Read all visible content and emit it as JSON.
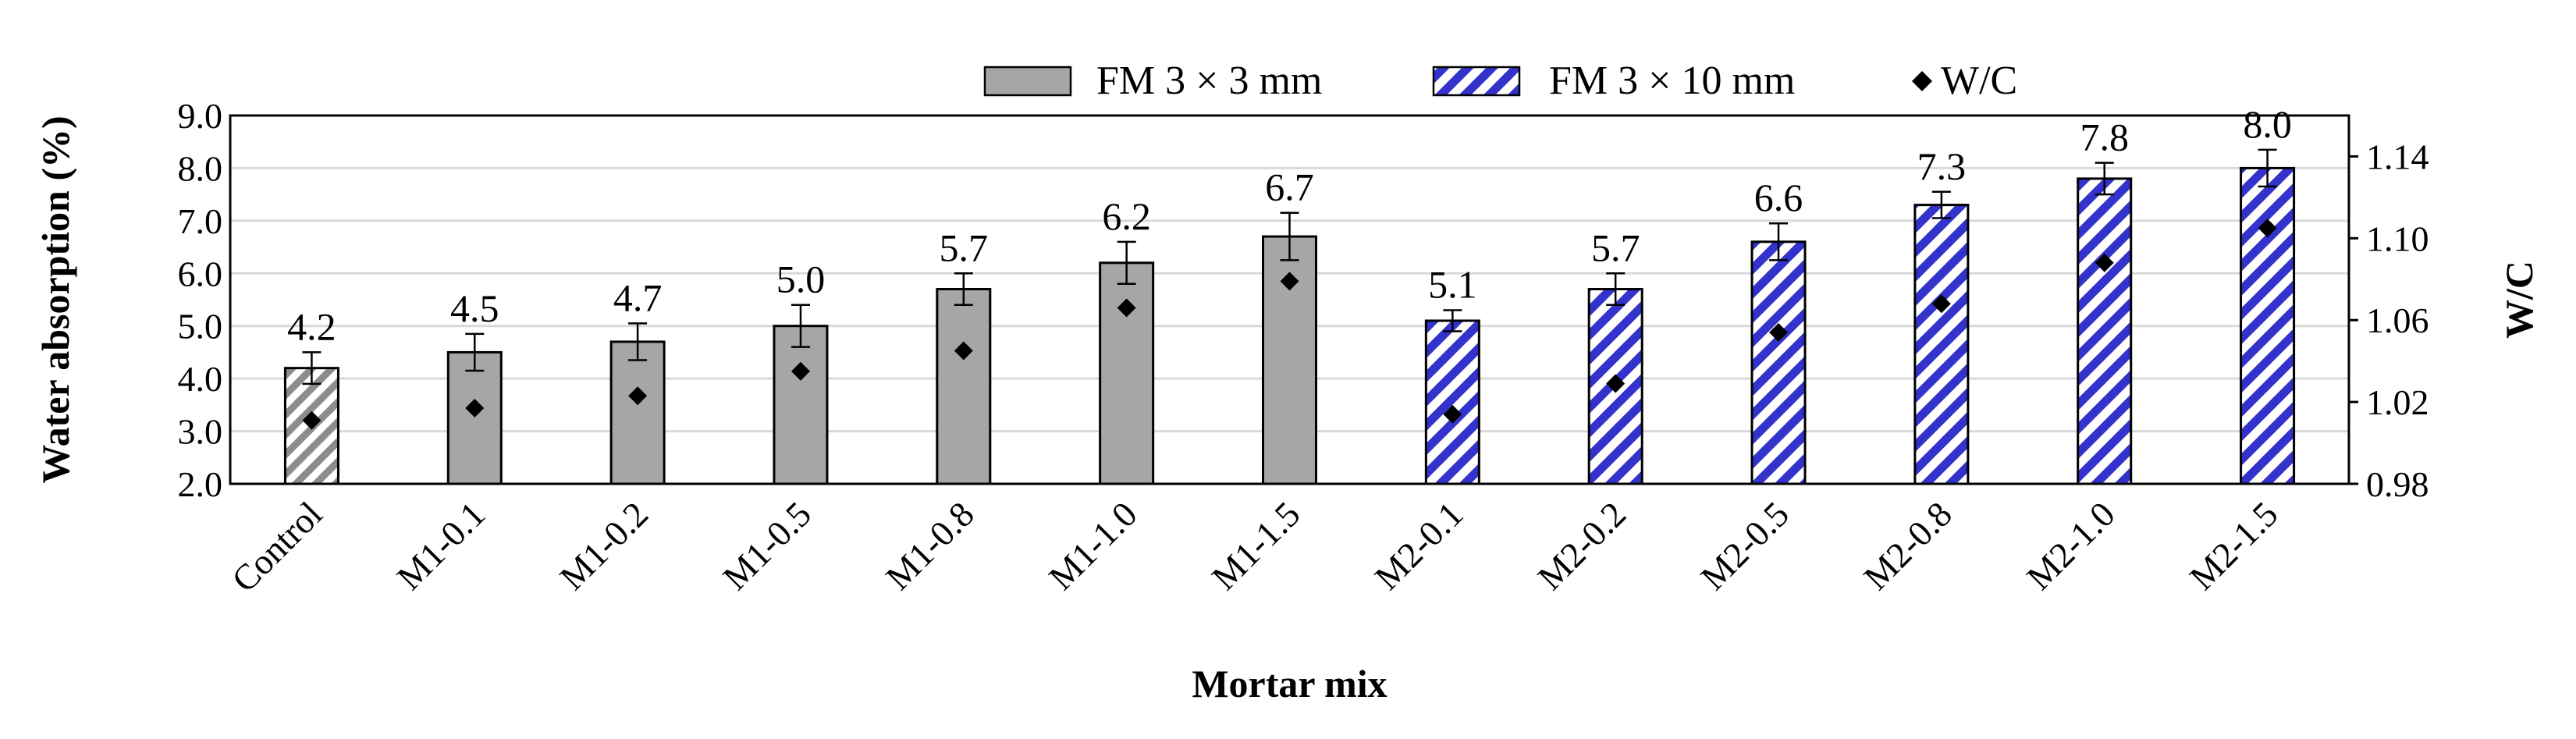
{
  "chart_data": {
    "type": "bar",
    "categories": [
      "Control",
      "M1-0.1",
      "M1-0.2",
      "M1-0.5",
      "M1-0.8",
      "M1-1.0",
      "M1-1.5",
      "M2-0.1",
      "M2-0.2",
      "M2-0.5",
      "M2-0.8",
      "M2-1.0",
      "M2-1.5"
    ],
    "values": [
      4.2,
      4.5,
      4.7,
      5.0,
      5.7,
      6.2,
      6.7,
      5.1,
      5.7,
      6.6,
      7.3,
      7.8,
      8.0
    ],
    "data_labels": [
      "4.2",
      "4.5",
      "4.7",
      "5.0",
      "5.7",
      "6.2",
      "6.7",
      "5.1",
      "5.7",
      "6.6",
      "7.3",
      "7.8",
      "8.0"
    ],
    "error": [
      0.3,
      0.35,
      0.35,
      0.4,
      0.3,
      0.4,
      0.45,
      0.2,
      0.3,
      0.35,
      0.25,
      0.3,
      0.35
    ],
    "bar_styles": [
      "control",
      "fm3",
      "fm3",
      "fm3",
      "fm3",
      "fm3",
      "fm3",
      "fm10",
      "fm10",
      "fm10",
      "fm10",
      "fm10",
      "fm10"
    ],
    "wc": [
      1.011,
      1.017,
      1.023,
      1.035,
      1.045,
      1.066,
      1.079,
      1.014,
      1.029,
      1.054,
      1.068,
      1.088,
      1.105
    ],
    "xlabel": "Mortar mix",
    "ylabel": "Water absorption (%)",
    "y2label": "W/C",
    "ylim": [
      2.0,
      9.0
    ],
    "y2lim": [
      0.98,
      1.16
    ],
    "yticks": [
      "2.0",
      "3.0",
      "4.0",
      "5.0",
      "6.0",
      "7.0",
      "8.0",
      "9.0"
    ],
    "y2ticks": [
      "0.98",
      "1.02",
      "1.06",
      "1.10",
      "1.14"
    ],
    "grid": true,
    "legend": {
      "position": "top-center",
      "entries": [
        {
          "label": "FM 3 × 3 mm",
          "style": "fm3"
        },
        {
          "label": "FM 3 × 10 mm",
          "style": "fm10"
        },
        {
          "label": "W/C",
          "style": "diamond"
        }
      ]
    },
    "colors": {
      "fm3_fill": "#a6a6a6",
      "fm10_stripe": "#3333cc",
      "control_stripe": "#8c8c8c",
      "marker": "#000000",
      "grid": "#d9d9d9"
    }
  }
}
